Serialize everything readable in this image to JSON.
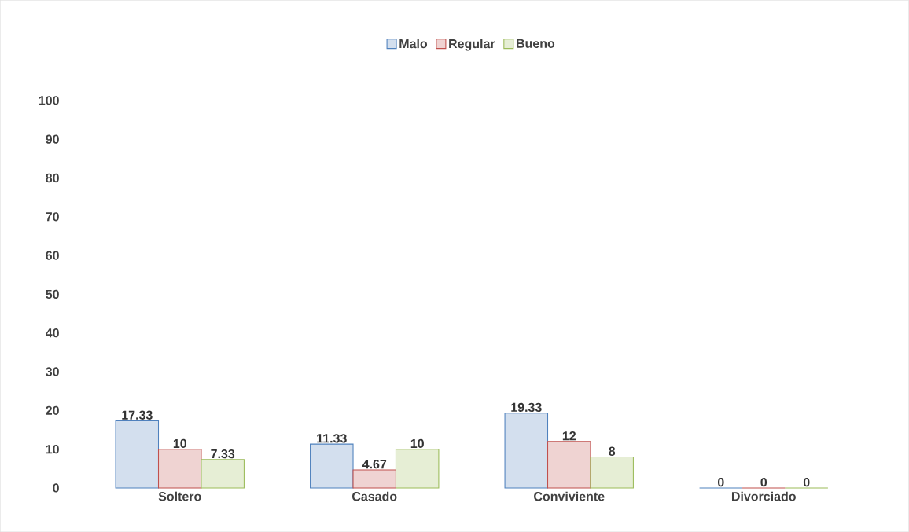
{
  "chart_data": {
    "type": "bar",
    "categories": [
      "Soltero",
      "Casado",
      "Conviviente",
      "Divorciado"
    ],
    "series": [
      {
        "name": "Malo",
        "color": "#4f81bd",
        "values": [
          17.33,
          11.33,
          19.33,
          0
        ]
      },
      {
        "name": "Regular",
        "color": "#c0504d",
        "values": [
          10,
          4.67,
          12,
          0
        ]
      },
      {
        "name": "Bueno",
        "color": "#9bbb59",
        "values": [
          7.33,
          10,
          8,
          0
        ]
      }
    ],
    "ylim": [
      0,
      100
    ],
    "yticks": [
      0,
      10,
      20,
      30,
      40,
      50,
      60,
      70,
      80,
      90,
      100
    ],
    "data_labels": true,
    "legend": "top"
  }
}
